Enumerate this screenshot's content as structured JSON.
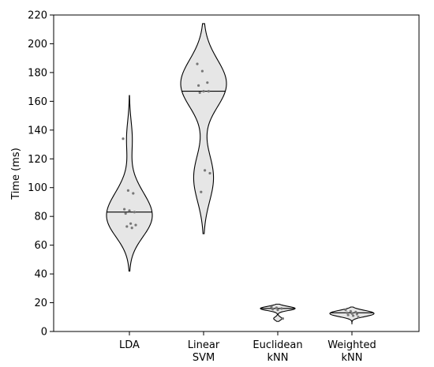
{
  "chart_data": {
    "type": "violin",
    "ylabel": "Time (ms)",
    "ylim": [
      0,
      220
    ],
    "yticks": [
      0,
      20,
      40,
      60,
      80,
      100,
      120,
      140,
      160,
      180,
      200,
      220
    ],
    "categories": [
      {
        "label_lines": [
          "LDA"
        ],
        "median": 83,
        "points": [
          134,
          98,
          96,
          85,
          84,
          83,
          82,
          75,
          74,
          73,
          72
        ],
        "range": [
          42,
          164
        ]
      },
      {
        "label_lines": [
          "Linear",
          "SVM"
        ],
        "median": 167,
        "points": [
          186,
          181,
          173,
          171,
          167,
          167,
          166,
          112,
          110,
          97
        ],
        "range": [
          68,
          214
        ]
      },
      {
        "label_lines": [
          "Euclidean",
          "kNN"
        ],
        "median": 16,
        "points": [
          17,
          16.5,
          16,
          15.5,
          15,
          9
        ],
        "range": [
          7,
          19
        ]
      },
      {
        "label_lines": [
          "Weighted",
          "kNN"
        ],
        "median": 13,
        "points": [
          15,
          14,
          13.5,
          13,
          12.5,
          12,
          11.5,
          11,
          10
        ],
        "range": [
          5,
          17
        ]
      }
    ],
    "colors": {
      "fill": "#e6e6e6",
      "outline": "#000000",
      "points": "#777777",
      "median": "#000000"
    }
  }
}
